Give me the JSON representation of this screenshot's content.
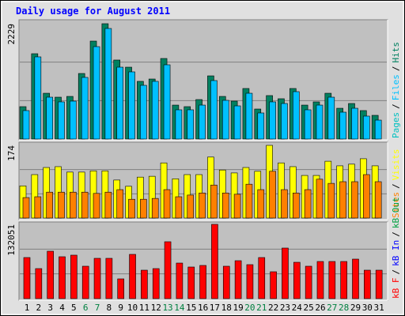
{
  "title": "Daily usage for August 2011",
  "legend_separator": "/",
  "highlight_categories": [
    "6",
    "7",
    "13",
    "14",
    "20",
    "21",
    "27",
    "28"
  ],
  "highlight_color": "#008040",
  "chart_data": [
    {
      "type": "bar",
      "ylim": [
        0,
        2229
      ],
      "yticks": [
        2229
      ],
      "series": [
        {
          "name": "Pages",
          "color": "#00c0c0"
        },
        {
          "name": "Files",
          "color": "#00c0ff",
          "values": [
            550,
            1588,
            809,
            718,
            733,
            1191,
            1786,
            2137,
            1389,
            1298,
            1038,
            1115,
            1435,
            565,
            565,
            656,
            1130,
            748,
            641,
            885,
            504,
            718,
            687,
            916,
            565,
            656,
            809,
            519,
            595,
            443,
            366
          ]
        },
        {
          "name": "Hits",
          "color": "#008060",
          "values": [
            626,
            1649,
            885,
            809,
            824,
            1267,
            1893,
            2229,
            1527,
            1389,
            1115,
            1160,
            1557,
            656,
            626,
            763,
            1221,
            824,
            733,
            977,
            580,
            840,
            779,
            977,
            656,
            718,
            885,
            595,
            687,
            550,
            458
          ]
        }
      ]
    },
    {
      "type": "bar",
      "ylim": [
        0,
        174
      ],
      "yticks": [
        174
      ],
      "series": [
        {
          "name": "Sites",
          "color": "#ff8000",
          "values": [
            49,
            51,
            62,
            62,
            62,
            62,
            59,
            62,
            68,
            45,
            45,
            47,
            68,
            51,
            55,
            60,
            79,
            60,
            57,
            81,
            68,
            112,
            68,
            60,
            68,
            93,
            83,
            87,
            87,
            104,
            87
          ]
        },
        {
          "name": "Visits",
          "color": "#ffff00",
          "values": [
            77,
            104,
            121,
            123,
            110,
            110,
            113,
            113,
            91,
            76,
            98,
            100,
            132,
            94,
            104,
            104,
            146,
            115,
            108,
            121,
            112,
            174,
            132,
            123,
            102,
            102,
            136,
            125,
            129,
            142,
            125
          ]
        }
      ]
    },
    {
      "type": "bar",
      "ylim": [
        0,
        132051
      ],
      "yticks": [
        132051
      ],
      "categories": [
        "1",
        "2",
        "3",
        "4",
        "5",
        "6",
        "7",
        "8",
        "9",
        "10",
        "11",
        "12",
        "13",
        "14",
        "15",
        "16",
        "17",
        "18",
        "19",
        "20",
        "21",
        "22",
        "23",
        "24",
        "25",
        "26",
        "27",
        "28",
        "29",
        "30",
        "31"
      ],
      "series": [
        {
          "name": "kB F",
          "color": "#ff0000",
          "values": [
            73060,
            53390,
            84300,
            74470,
            77280,
            57610,
            71655,
            71655,
            35125,
            78680,
            50580,
            53390,
            101160,
            63225,
            56200,
            59010,
            132051,
            57610,
            67440,
            60415,
            73060,
            47770,
            89920,
            64630,
            57610,
            66035,
            66035,
            66035,
            70250,
            50580,
            50580
          ]
        },
        {
          "name": "kB In",
          "color": "#0000ff"
        },
        {
          "name": "kB Out",
          "color": "#00a040"
        }
      ]
    }
  ]
}
